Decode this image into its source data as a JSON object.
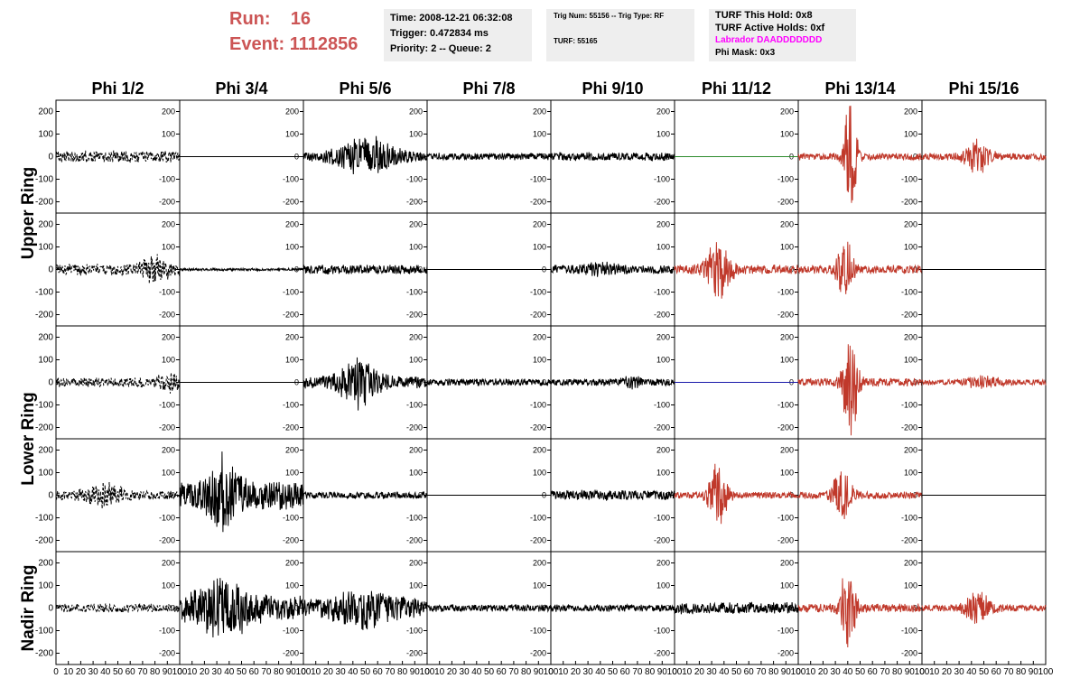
{
  "header": {
    "run_label": "Run:",
    "run_value": "16",
    "event_label": "Event:",
    "event_value": "1112856",
    "time": "Time: 2008-12-21 06:32:08",
    "trigger": "Trigger: 0.472834 ms",
    "priority": "Priority: 2 -- Queue: 2",
    "trig_num": "Trig Num: 55156 -- Trig Type: RF",
    "turf": "TURF: 55165",
    "turf_this_hold": "TURF This Hold: 0x8",
    "turf_active_holds": "TURF Active Holds: 0xf",
    "labrador": "Labrador DAADDDDDDD",
    "phi_mask": "Phi Mask: 0x3"
  },
  "chart_data": {
    "type": "line",
    "columns": [
      "Phi 1/2",
      "Phi 3/4",
      "Phi 5/6",
      "Phi 7/8",
      "Phi 9/10",
      "Phi 11/12",
      "Phi 13/14",
      "Phi 15/16"
    ],
    "ring_labels": [
      {
        "text": "Upper Ring",
        "rows": [
          0,
          1
        ]
      },
      {
        "text": "Lower Ring",
        "rows": [
          2,
          3
        ]
      },
      {
        "text": "Nadir Ring",
        "rows": [
          4
        ]
      }
    ],
    "ylim": [
      -250,
      250
    ],
    "yticks": [
      -200,
      -100,
      0,
      100,
      200
    ],
    "xlim": [
      0,
      100
    ],
    "xticks": [
      0,
      10,
      20,
      30,
      40,
      50,
      60,
      70,
      80,
      90,
      100
    ],
    "xtick_labels": [
      "0",
      "10",
      "20",
      "30",
      "40",
      "50",
      "60",
      "70",
      "80",
      "90",
      "100"
    ],
    "colors": {
      "black": "#000000",
      "red": "#c0392b",
      "green": "#2e8b2e",
      "blue": "#1a1aaa"
    },
    "traces": [
      [
        {
          "color": "black",
          "style": "dashed",
          "amp": 25,
          "burst": 0,
          "width": 0
        },
        {
          "color": "black",
          "style": "solid",
          "amp": 0,
          "burst": 0,
          "width": 0
        },
        {
          "color": "black",
          "style": "solid",
          "amp": 20,
          "burst": 75,
          "width": 22,
          "center": 0.5
        },
        {
          "color": "black",
          "style": "solid",
          "amp": 15,
          "burst": 0,
          "width": 0
        },
        {
          "color": "black",
          "style": "solid",
          "amp": 18,
          "burst": 0,
          "width": 0
        },
        {
          "color": "green",
          "style": "solid",
          "amp": 0,
          "burst": 0,
          "width": 0
        },
        {
          "color": "red",
          "style": "solid",
          "amp": 15,
          "burst": 240,
          "width": 5,
          "center": 0.42
        },
        {
          "color": "red",
          "style": "solid",
          "amp": 15,
          "burst": 60,
          "width": 10,
          "center": 0.45
        }
      ],
      [
        {
          "color": "black",
          "style": "dashed",
          "amp": 25,
          "burst": 45,
          "width": 10,
          "center": 0.8
        },
        {
          "color": "black",
          "style": "solid",
          "amp": 5,
          "burst": 0,
          "width": 0
        },
        {
          "color": "black",
          "style": "solid",
          "amp": 20,
          "burst": 0,
          "width": 0
        },
        {
          "color": "black",
          "style": "solid",
          "amp": 0,
          "burst": 0,
          "width": 0
        },
        {
          "color": "black",
          "style": "solid",
          "amp": 18,
          "burst": 15,
          "width": 15,
          "center": 0.4
        },
        {
          "color": "red",
          "style": "solid",
          "amp": 20,
          "burst": 110,
          "width": 10,
          "center": 0.35
        },
        {
          "color": "red",
          "style": "solid",
          "amp": 18,
          "burst": 140,
          "width": 6,
          "center": 0.38
        },
        {
          "color": "black",
          "style": "solid",
          "amp": 0,
          "burst": 0,
          "width": 0
        }
      ],
      [
        {
          "color": "black",
          "style": "dashed",
          "amp": 20,
          "burst": 25,
          "width": 10,
          "center": 0.92
        },
        {
          "color": "black",
          "style": "solid",
          "amp": 0,
          "burst": 0,
          "width": 0
        },
        {
          "color": "black",
          "style": "solid",
          "amp": 25,
          "burst": 90,
          "width": 15,
          "center": 0.45
        },
        {
          "color": "black",
          "style": "solid",
          "amp": 15,
          "burst": 0,
          "width": 0
        },
        {
          "color": "black",
          "style": "solid",
          "amp": 15,
          "burst": 15,
          "width": 8,
          "center": 0.65
        },
        {
          "color": "blue",
          "style": "solid",
          "amp": 0,
          "burst": 0,
          "width": 0
        },
        {
          "color": "red",
          "style": "solid",
          "amp": 18,
          "burst": 220,
          "width": 6,
          "center": 0.42
        },
        {
          "color": "red",
          "style": "solid",
          "amp": 12,
          "burst": 20,
          "width": 15,
          "center": 0.5
        }
      ],
      [
        {
          "color": "black",
          "style": "dashed",
          "amp": 20,
          "burst": 35,
          "width": 15,
          "center": 0.4
        },
        {
          "color": "black",
          "style": "solid",
          "amp": 60,
          "burst": 120,
          "width": 12,
          "center": 0.35
        },
        {
          "color": "black",
          "style": "solid",
          "amp": 15,
          "burst": 0,
          "width": 0
        },
        {
          "color": "black",
          "style": "solid",
          "amp": 0,
          "burst": 0,
          "width": 0
        },
        {
          "color": "black",
          "style": "solid",
          "amp": 22,
          "burst": 0,
          "width": 0
        },
        {
          "color": "red",
          "style": "solid",
          "amp": 15,
          "burst": 140,
          "width": 7,
          "center": 0.35
        },
        {
          "color": "red",
          "style": "solid",
          "amp": 15,
          "burst": 100,
          "width": 8,
          "center": 0.35
        },
        {
          "color": "black",
          "style": "solid",
          "amp": 0,
          "burst": 0,
          "width": 0
        }
      ],
      [
        {
          "color": "black",
          "style": "dashed",
          "amp": 18,
          "burst": 0,
          "width": 0
        },
        {
          "color": "black",
          "style": "solid",
          "amp": 50,
          "burst": 90,
          "width": 22,
          "center": 0.35
        },
        {
          "color": "black",
          "style": "solid",
          "amp": 35,
          "burst": 60,
          "width": 25,
          "center": 0.5
        },
        {
          "color": "black",
          "style": "solid",
          "amp": 15,
          "burst": 0,
          "width": 0
        },
        {
          "color": "black",
          "style": "solid",
          "amp": 15,
          "burst": 0,
          "width": 0
        },
        {
          "color": "black",
          "style": "solid",
          "amp": 25,
          "burst": 0,
          "width": 0
        },
        {
          "color": "red",
          "style": "solid",
          "amp": 18,
          "burst": 170,
          "width": 6,
          "center": 0.4
        },
        {
          "color": "red",
          "style": "solid",
          "amp": 15,
          "burst": 70,
          "width": 10,
          "center": 0.45
        }
      ]
    ]
  }
}
